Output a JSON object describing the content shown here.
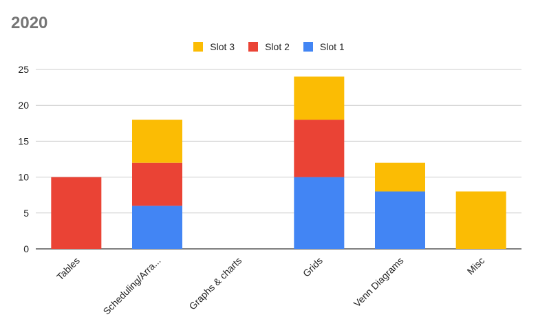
{
  "chart_data": {
    "type": "bar",
    "stacked": true,
    "title": "2020",
    "xlabel": "",
    "ylabel": "",
    "ylim": [
      0,
      25
    ],
    "yticks": [
      0,
      5,
      10,
      15,
      20,
      25
    ],
    "grid": true,
    "legend_position": "top",
    "categories": [
      "Tables",
      "Scheduling/Arra...",
      "Graphs & charts",
      "Grids",
      "Venn Diagrams",
      "Misc"
    ],
    "series": [
      {
        "name": "Slot 1",
        "color": "#4285F4",
        "values": [
          0,
          6,
          0,
          10,
          8,
          0
        ]
      },
      {
        "name": "Slot 2",
        "color": "#EA4335",
        "values": [
          10,
          6,
          0,
          8,
          0,
          0
        ]
      },
      {
        "name": "Slot 3",
        "color": "#FBBC04",
        "values": [
          0,
          6,
          0,
          6,
          4,
          8
        ]
      }
    ],
    "legend_order": [
      "Slot 3",
      "Slot 2",
      "Slot 1"
    ]
  }
}
